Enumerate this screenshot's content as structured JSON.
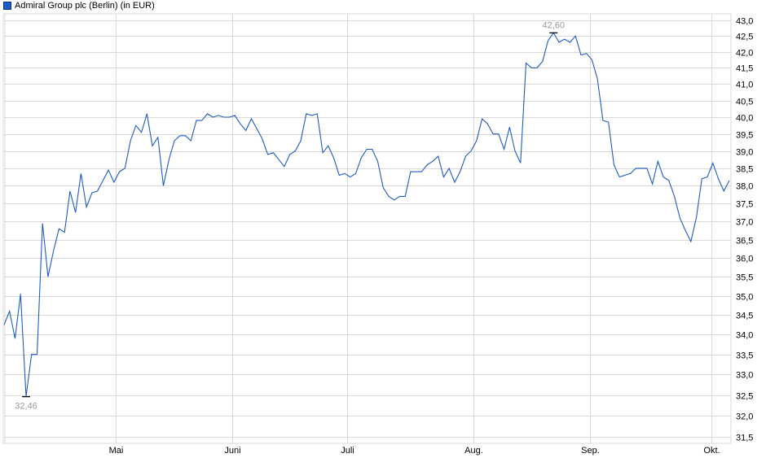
{
  "chart_data": {
    "type": "line",
    "title": "Admiral Group plc (Berlin) (in EUR)",
    "series": [
      {
        "name": "Admiral Group plc (Berlin) (in EUR)",
        "color": "#1f5bc4",
        "values": [
          34.25,
          34.6,
          33.9,
          35.05,
          32.46,
          33.5,
          33.5,
          36.95,
          35.5,
          36.2,
          36.8,
          36.7,
          37.85,
          37.25,
          38.35,
          37.4,
          37.8,
          37.85,
          38.15,
          38.45,
          38.1,
          38.4,
          38.5,
          39.3,
          39.75,
          39.55,
          40.1,
          39.15,
          39.4,
          38.0,
          38.75,
          39.3,
          39.45,
          39.45,
          39.3,
          39.9,
          39.9,
          40.1,
          40.0,
          40.05,
          40.0,
          40.0,
          40.05,
          39.8,
          39.6,
          39.95,
          39.65,
          39.35,
          38.9,
          38.95,
          38.75,
          38.55,
          38.9,
          39.0,
          39.3,
          40.1,
          40.05,
          40.1,
          38.95,
          39.15,
          38.8,
          38.3,
          38.35,
          38.25,
          38.35,
          38.8,
          39.05,
          39.05,
          38.7,
          37.95,
          37.7,
          37.6,
          37.7,
          37.7,
          38.4,
          38.4,
          38.4,
          38.6,
          38.7,
          38.85,
          38.25,
          38.5,
          38.1,
          38.4,
          38.85,
          39.0,
          39.3,
          39.95,
          39.8,
          39.5,
          39.5,
          39.05,
          39.7,
          39.0,
          38.65,
          41.65,
          41.5,
          41.5,
          41.7,
          42.35,
          42.6,
          42.3,
          42.4,
          42.3,
          42.5,
          41.9,
          41.95,
          41.75,
          41.15,
          39.9,
          39.85,
          38.6,
          38.25,
          38.3,
          38.35,
          38.5,
          38.5,
          38.5,
          38.05,
          38.7,
          38.25,
          38.15,
          37.7,
          37.1,
          36.75,
          36.45,
          37.1,
          38.2,
          38.25,
          38.65,
          38.2,
          37.85,
          38.15
        ]
      }
    ],
    "x_ticks": [
      {
        "label": "Mai",
        "index": 20.3
      },
      {
        "label": "Juni",
        "index": 41.5
      },
      {
        "label": "Juli",
        "index": 62.5
      },
      {
        "label": "Aug.",
        "index": 85.5
      },
      {
        "label": "Sep.",
        "index": 106.6
      },
      {
        "label": "Okt.",
        "index": 128.8
      }
    ],
    "y_ticks": [
      "43,0",
      "42,5",
      "42,0",
      "41,5",
      "41,0",
      "40,5",
      "40,0",
      "39,5",
      "39,0",
      "38,5",
      "38,0",
      "37,5",
      "37,0",
      "36,5",
      "36,0",
      "35,5",
      "35,0",
      "34,5",
      "34,0",
      "33,5",
      "33,0",
      "32,5",
      "32,0",
      "31,5"
    ],
    "ylim": [
      31.5,
      43.0
    ],
    "y_scale": "log",
    "grid": true,
    "legend": "top-left",
    "annotations": [
      {
        "label": "42,60",
        "index": 100,
        "value": 42.6,
        "kind": "max"
      },
      {
        "label": "32,46",
        "index": 4,
        "value": 32.46,
        "kind": "min"
      }
    ],
    "grid_color": "#d9d9d9",
    "annotation_color": "#999999"
  }
}
